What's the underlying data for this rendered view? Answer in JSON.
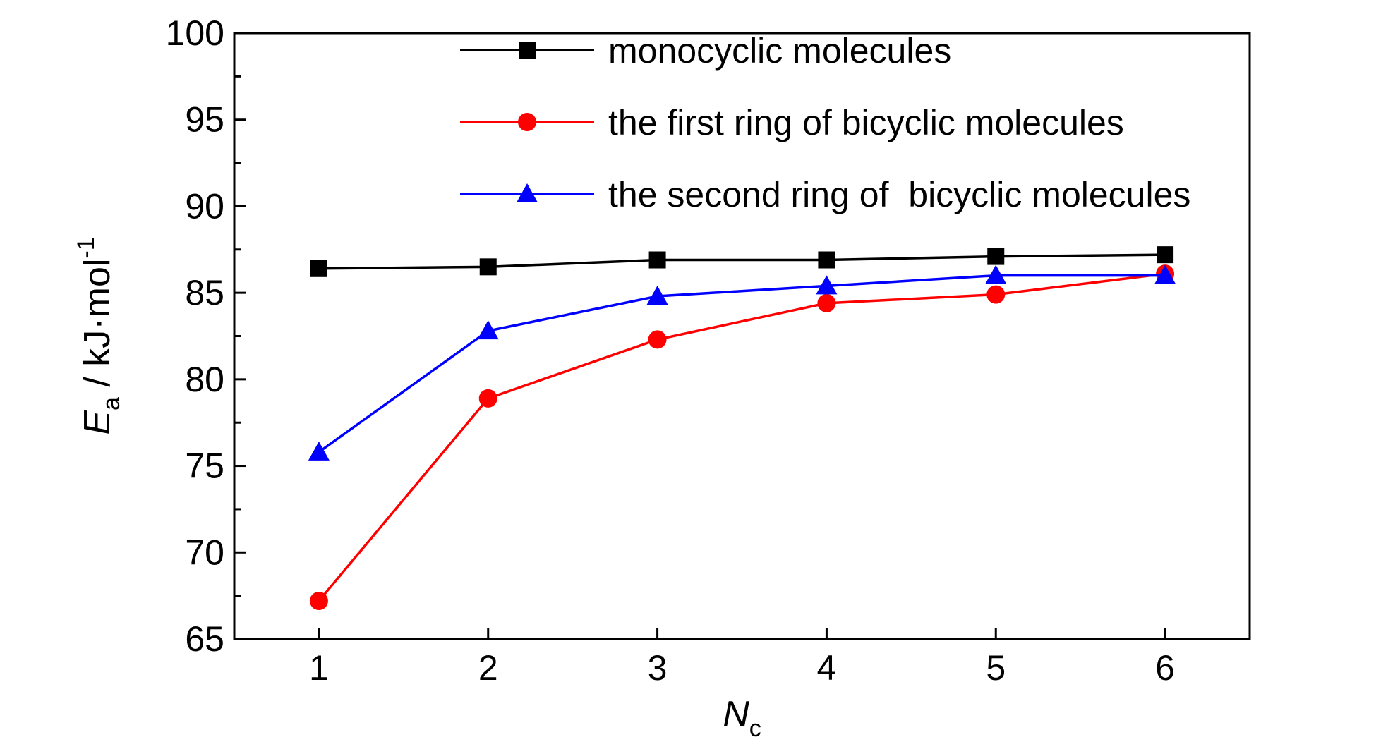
{
  "chart_data": {
    "type": "line",
    "x": [
      1,
      2,
      3,
      4,
      5,
      6
    ],
    "xlim": [
      0.5,
      6.5
    ],
    "ylim": [
      65,
      100
    ],
    "xticks": [
      1,
      2,
      3,
      4,
      5,
      6
    ],
    "yticks": [
      65,
      70,
      75,
      80,
      85,
      90,
      95,
      100
    ],
    "xlabel": {
      "main": "N",
      "sub": "c"
    },
    "ylabel": {
      "main": "E",
      "sub": "a",
      "unit": " / kJ·mol",
      "sup": "-1"
    },
    "grid": false,
    "legend_position": "top-center",
    "series": [
      {
        "name": "monocyclic molecules",
        "color": "#000000",
        "marker": "square",
        "values": [
          86.4,
          86.5,
          86.9,
          86.9,
          87.1,
          87.2
        ]
      },
      {
        "name": "the first ring of bicyclic molecules",
        "color": "#ff0000",
        "marker": "circle",
        "values": [
          67.2,
          78.9,
          82.3,
          84.4,
          84.9,
          86.1
        ]
      },
      {
        "name": "the second ring of  bicyclic molecules",
        "color": "#0000ff",
        "marker": "triangle",
        "values": [
          75.8,
          82.8,
          84.8,
          85.4,
          86.0,
          86.0
        ]
      }
    ]
  }
}
